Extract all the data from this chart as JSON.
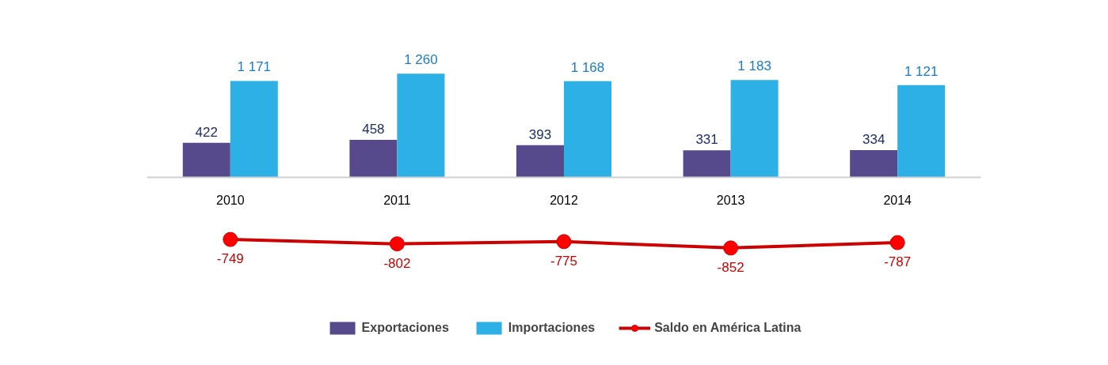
{
  "chart_data": {
    "type": "bar",
    "categories": [
      "2010",
      "2011",
      "2012",
      "2013",
      "2014"
    ],
    "series": [
      {
        "name": "Exportaciones",
        "color": "#574a8c",
        "values": [
          422,
          458,
          393,
          331,
          334
        ],
        "value_labels": [
          "422",
          "458",
          "393",
          "331",
          "334"
        ]
      },
      {
        "name": "Importaciones",
        "color": "#2db0e6",
        "values": [
          1171,
          1260,
          1168,
          1183,
          1121
        ],
        "value_labels": [
          "1 171",
          "1 260",
          "1 168",
          "1 183",
          "1 121"
        ]
      },
      {
        "name": "Saldo en América Latina",
        "type": "line",
        "color": "#cc0000",
        "marker": "circle",
        "values": [
          -749,
          -802,
          -775,
          -852,
          -787
        ],
        "value_labels": [
          "-749",
          "-802",
          "-775",
          "-852",
          "-787"
        ]
      }
    ],
    "legend": "bottom",
    "grid": false,
    "tick_labels": "x"
  }
}
